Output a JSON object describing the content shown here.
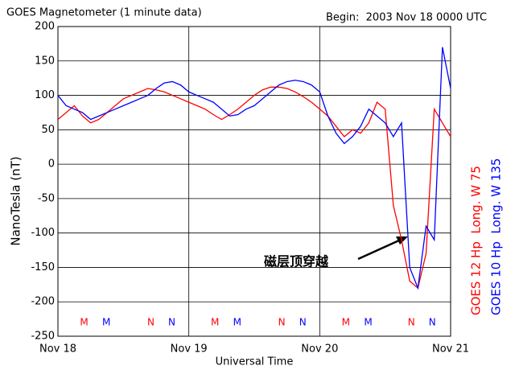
{
  "chart_data": {
    "type": "line",
    "title": "GOES Magnetometer (1 minute data)",
    "subtitle": "Begin:  2003 Nov 18 0000 UTC",
    "x_label": "Universal Time",
    "y_label": "NanoTesla (nT)",
    "annotation": "磁层顶穿越",
    "x": [
      0,
      0.0625,
      0.125,
      0.1875,
      0.25,
      0.3125,
      0.375,
      0.4375,
      0.5,
      0.5625,
      0.625,
      0.6875,
      0.75,
      0.8125,
      0.875,
      0.9375,
      1.0,
      1.0625,
      1.125,
      1.1875,
      1.25,
      1.3125,
      1.375,
      1.4375,
      1.5,
      1.5625,
      1.625,
      1.6875,
      1.75,
      1.8125,
      1.875,
      1.9375,
      2.0,
      2.0625,
      2.125,
      2.1875,
      2.25,
      2.3125,
      2.375,
      2.4375,
      2.5,
      2.5625,
      2.625,
      2.6875,
      2.75,
      2.8125,
      2.875,
      2.9375,
      3.0
    ],
    "series": [
      {
        "name": "GOES 12 Hp  Long. W 75",
        "color": "#ff0000",
        "values": [
          65,
          75,
          85,
          70,
          60,
          65,
          75,
          85,
          95,
          100,
          105,
          110,
          108,
          105,
          100,
          95,
          90,
          85,
          80,
          72,
          65,
          72,
          80,
          90,
          100,
          108,
          112,
          112,
          110,
          105,
          98,
          90,
          80,
          70,
          55,
          40,
          50,
          45,
          60,
          90,
          80,
          -60,
          -110,
          -170,
          -180,
          -130,
          80,
          60,
          40
        ],
        "markers": [
          {
            "label": "M",
            "x": 0.2
          },
          {
            "label": "N",
            "x": 0.71
          },
          {
            "label": "M",
            "x": 1.2
          },
          {
            "label": "N",
            "x": 1.71
          },
          {
            "label": "M",
            "x": 2.2
          },
          {
            "label": "N",
            "x": 2.7
          }
        ]
      },
      {
        "name": "GOES 10 Hp  Long. W 135",
        "color": "#0000ff",
        "values": [
          100,
          85,
          80,
          75,
          65,
          70,
          75,
          80,
          85,
          90,
          95,
          100,
          110,
          118,
          120,
          115,
          105,
          100,
          95,
          90,
          80,
          70,
          72,
          80,
          85,
          95,
          105,
          115,
          120,
          122,
          120,
          115,
          105,
          70,
          45,
          30,
          40,
          55,
          80,
          70,
          60,
          40,
          60,
          -150,
          -180,
          -90,
          -110,
          170,
          110
        ],
        "markers": [
          {
            "label": "M",
            "x": 0.37
          },
          {
            "label": "N",
            "x": 0.87
          },
          {
            "label": "M",
            "x": 1.37
          },
          {
            "label": "N",
            "x": 1.87
          },
          {
            "label": "M",
            "x": 2.37
          },
          {
            "label": "N",
            "x": 2.86
          }
        ]
      }
    ],
    "xlim": [
      0,
      3
    ],
    "xticks": [
      {
        "value": 0,
        "label": "Nov 18"
      },
      {
        "value": 1,
        "label": "Nov 19"
      },
      {
        "value": 2,
        "label": "Nov 20"
      },
      {
        "value": 3,
        "label": "Nov 21"
      }
    ],
    "ylim": [
      -250,
      200
    ],
    "yticks": [
      -250,
      -200,
      -150,
      -100,
      -50,
      0,
      50,
      100,
      150,
      200
    ],
    "grid": true,
    "marker_level": -230
  }
}
